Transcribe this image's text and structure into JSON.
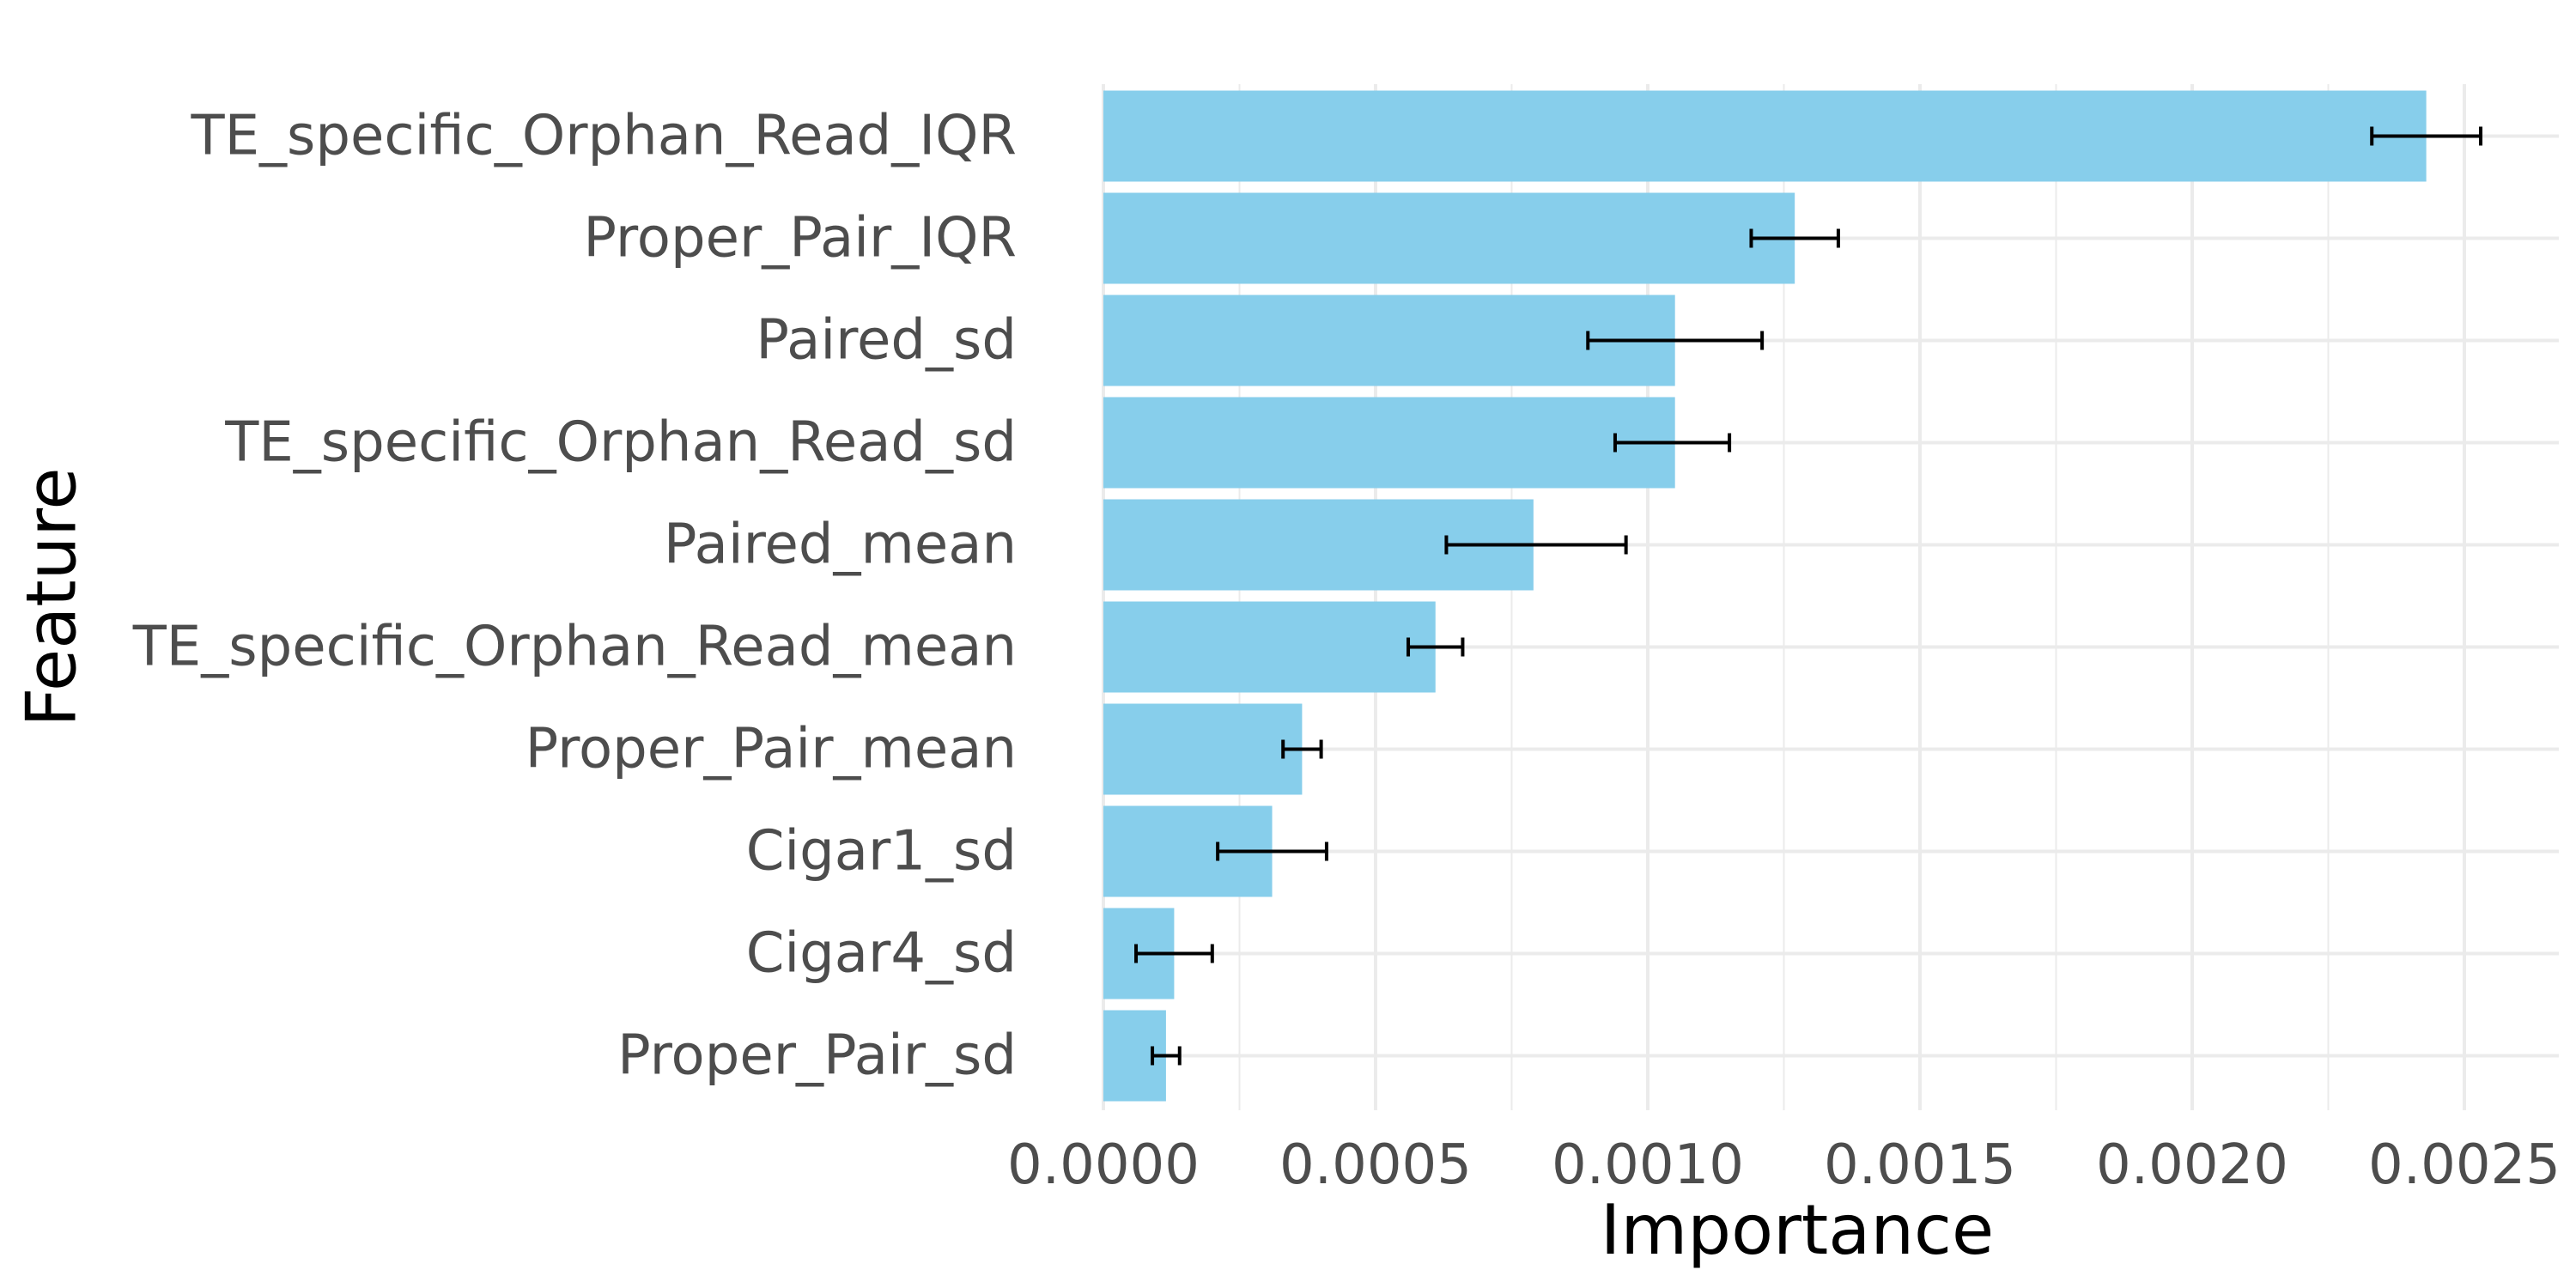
{
  "colors": {
    "bar": "#87CEEB",
    "error_bar": "#000000",
    "grid": "#EBEBEB",
    "tick_text": "#4D4D4D",
    "title_text": "#000000"
  },
  "chart_data": {
    "type": "bar",
    "orientation": "horizontal",
    "xlabel": "Importance",
    "ylabel": "Feature",
    "xlim": [
      0.0,
      0.0026
    ],
    "x_ticks": [
      "0.0000",
      "0.0005",
      "0.0010",
      "0.0015",
      "0.0020",
      "0.0025"
    ],
    "x_tick_values": [
      0.0,
      0.0005,
      0.001,
      0.0015,
      0.002,
      0.0025
    ],
    "grid": true,
    "legend": "none",
    "categories": [
      "TE_specific_Orphan_Read_IQR",
      "Proper_Pair_IQR",
      "Paired_sd",
      "TE_specific_Orphan_Read_sd",
      "Paired_mean",
      "TE_specific_Orphan_Read_mean",
      "Proper_Pair_mean",
      "Cigar1_sd",
      "Cigar4_sd",
      "Proper_Pair_sd"
    ],
    "values": [
      0.00243,
      0.00127,
      0.00105,
      0.00105,
      0.00079,
      0.00061,
      0.000365,
      0.00031,
      0.00013,
      0.000115
    ],
    "error_low": [
      0.00233,
      0.00119,
      0.00089,
      0.00094,
      0.00063,
      0.00056,
      0.00033,
      0.00021,
      6e-05,
      9e-05
    ],
    "error_high": [
      0.00253,
      0.00135,
      0.00121,
      0.00115,
      0.00096,
      0.00066,
      0.0004,
      0.00041,
      0.0002,
      0.00014
    ]
  }
}
